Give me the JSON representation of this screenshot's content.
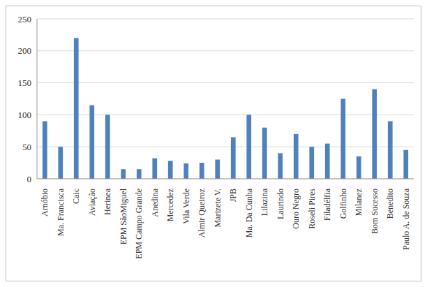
{
  "chart_data": {
    "type": "bar",
    "categories": [
      "Arnóbio",
      "Ma. Francisca",
      "Caic",
      "Aviação",
      "Herinea",
      "EPM SãoMiguel",
      "EPM Campo Grande",
      "Anedina",
      "Mercedez",
      "Vila Verde",
      "Almir Queiroz",
      "Marizete V.",
      "JPB",
      "Ma. Da Cunha",
      "Lilazina",
      "Laurindo",
      "Ouro Negro",
      "Roseli Pires",
      "Filadélfia",
      "Golfinho",
      "Milanez",
      "Bom Sucesso",
      "Benedito",
      "Paulo A. de Souza"
    ],
    "values": [
      90,
      50,
      220,
      115,
      100,
      15,
      15,
      32,
      28,
      24,
      25,
      30,
      65,
      100,
      80,
      40,
      70,
      50,
      55,
      125,
      35,
      140,
      90,
      45
    ],
    "color": "#4f81bd",
    "ylim": [
      0,
      250
    ],
    "yticks": [
      0,
      50,
      100,
      150,
      200,
      250
    ],
    "grid": true
  }
}
